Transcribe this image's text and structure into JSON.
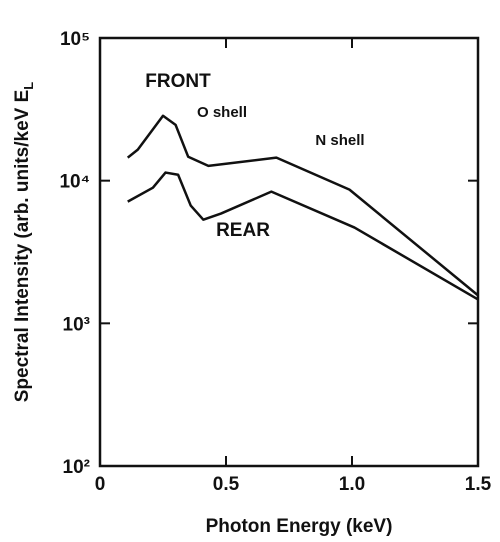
{
  "chart_data": {
    "type": "line",
    "x_label": "Photon Energy (keV)",
    "y_label": {
      "text": "Spectral Intensity (arb. units/keV E",
      "sub": "L"
    },
    "xlim": [
      0,
      1.5
    ],
    "xticks": [
      0,
      0.5,
      {
        "value": 1,
        "label": "1.0"
      },
      1.5
    ],
    "ylim": [
      100,
      100000
    ],
    "yticks": [
      {
        "value": 100,
        "label": "10²"
      },
      {
        "value": 1000,
        "label": "10³"
      },
      {
        "value": 10000,
        "label": "10⁴"
      },
      {
        "value": 100000,
        "label": "10⁵"
      }
    ],
    "log_y": true,
    "grid": false,
    "series": [
      {
        "name": "FRONT",
        "color": "#111111",
        "x": [
          0.11,
          0.15,
          0.25,
          0.3,
          0.35,
          0.43,
          0.7,
          0.99,
          1.5
        ],
        "values": [
          14500,
          16500,
          28500,
          24600,
          14700,
          12700,
          14500,
          8650,
          1570
        ]
      },
      {
        "name": "REAR",
        "color": "#111111",
        "x": [
          0.11,
          0.21,
          0.26,
          0.31,
          0.36,
          0.41,
          0.48,
          0.68,
          1.01,
          1.5
        ],
        "values": [
          7130,
          8930,
          11400,
          11000,
          6690,
          5330,
          5880,
          8380,
          4690,
          1470
        ]
      }
    ],
    "annotations": [
      "O shell",
      "N shell"
    ]
  }
}
